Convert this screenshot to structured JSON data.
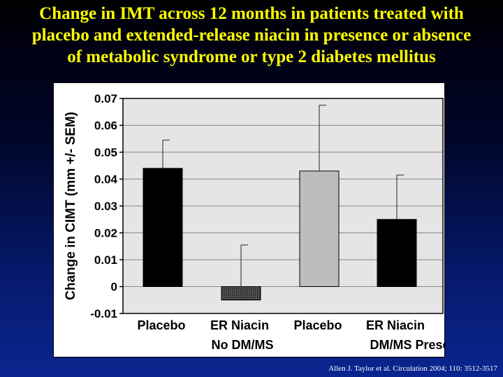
{
  "slide": {
    "title_lines": [
      "Change in IMT across 12 months in patients treated with",
      "placebo and extended-release niacin in presence or absence",
      "of metabolic syndrome or type 2 diabetes mellitus"
    ],
    "citation": "Allen J. Taylor et al. Circulation 2004; 110: 3512-3517"
  },
  "colors": {
    "title": "#ffff00",
    "background_top": "#000000",
    "background_bottom": "#0a2590",
    "plot_background": "#e5e5e5",
    "grid": "#888888"
  },
  "chart_data": {
    "type": "bar",
    "ylabel": "Change in CIMT (mm +/- SEM)",
    "ylim": [
      -0.01,
      0.07
    ],
    "yticks": [
      -0.01,
      0,
      0.01,
      0.02,
      0.03,
      0.04,
      0.05,
      0.06,
      0.07
    ],
    "ytick_labels": [
      "-0.01",
      "0",
      "0.01",
      "0.02",
      "0.03",
      "0.04",
      "0.05",
      "0.06",
      "0.07"
    ],
    "grid": "horizontal",
    "categories": [
      "Placebo",
      "ER Niacin",
      "Placebo",
      "ER Niacin"
    ],
    "groups": [
      "No DM/MS",
      "DM/MS Present"
    ],
    "group_of_category": [
      0,
      0,
      1,
      1
    ],
    "values": [
      0.044,
      -0.005,
      0.043,
      0.025
    ],
    "errors": [
      0.0105,
      0.0205,
      0.0245,
      0.0165
    ],
    "bar_colors": [
      "#000000",
      "#555555",
      "#bdbdbd",
      "#000000"
    ],
    "bar_patterns": [
      "solid",
      "dots",
      "solid",
      "solid"
    ]
  }
}
